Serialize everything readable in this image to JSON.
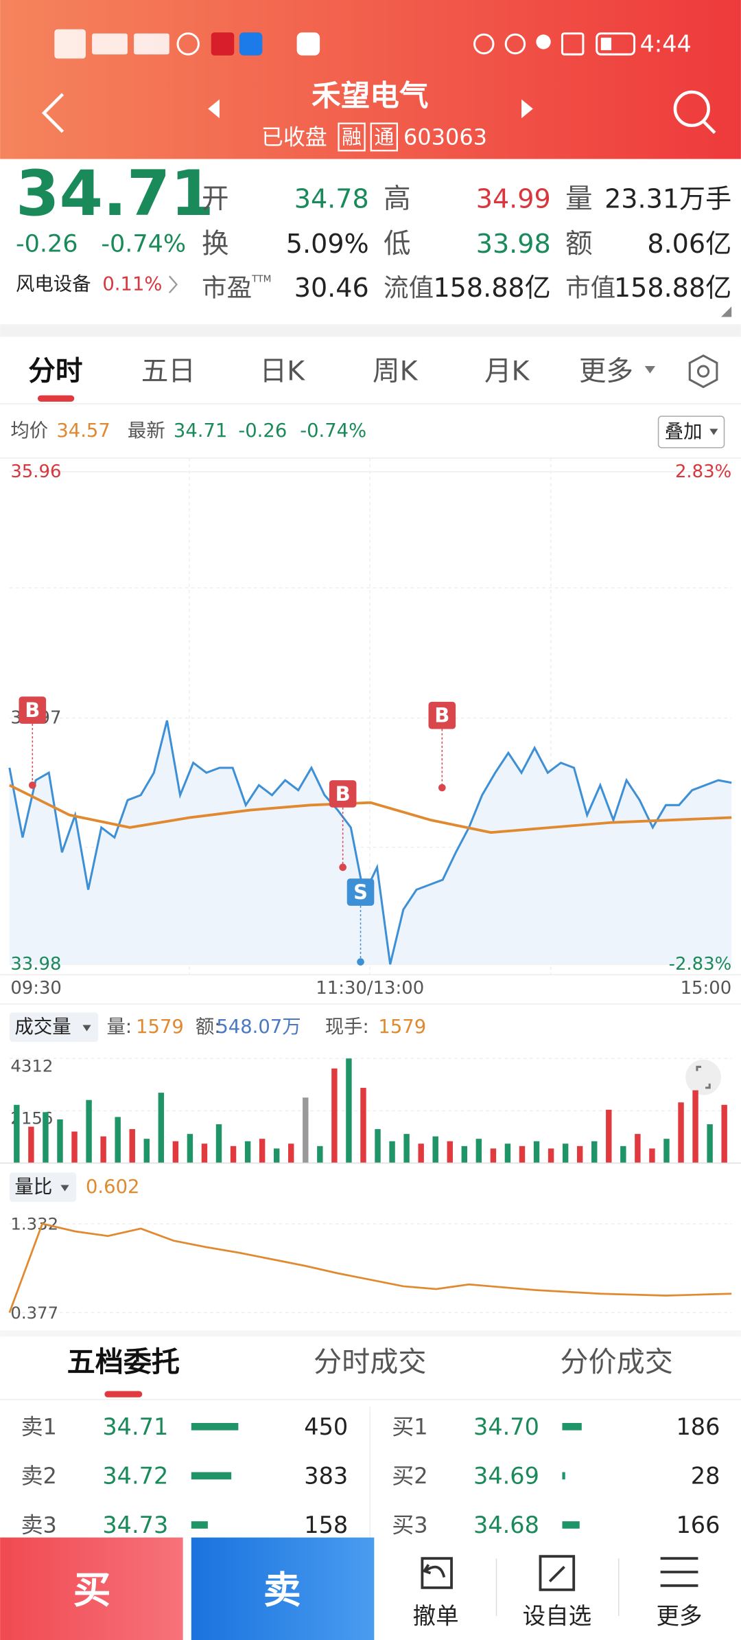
{
  "status_bar": {
    "time": "4:44"
  },
  "header": {
    "title": "禾望电气",
    "status": "已收盘",
    "badges": [
      "融",
      "通"
    ],
    "code": "603063"
  },
  "quote": {
    "price": "34.71",
    "change": "-0.26",
    "change_pct": "-0.74%",
    "fields": [
      {
        "label": "开",
        "value": "34.78"
      },
      {
        "label": "高",
        "value": "34.99"
      },
      {
        "label": "量",
        "value": "23.31万手"
      },
      {
        "label": "换",
        "value": "5.09%"
      },
      {
        "label": "低",
        "value": "33.98"
      },
      {
        "label": "额",
        "value": "8.06亿"
      },
      {
        "label": "市盈",
        "sup": "TTM",
        "value": "30.46"
      },
      {
        "label": "流值",
        "value": "158.88亿"
      },
      {
        "label": "市值",
        "value": "158.88亿"
      }
    ],
    "sector": {
      "name": "风电设备",
      "change": "0.11%"
    }
  },
  "tabs": [
    "分时",
    "五日",
    "日K",
    "周K",
    "月K",
    "更多"
  ],
  "info": {
    "avg_label": "均价",
    "avg": "34.57",
    "latest_label": "最新",
    "latest": "34.71",
    "change": "-0.26",
    "change_pct": "-0.74%",
    "overlay": "叠加"
  },
  "price_chart": {
    "ylim": [
      33.98,
      35.96
    ],
    "yticks": [
      35.96,
      34.97,
      33.98
    ],
    "pct_ticks": [
      "2.83%",
      "-2.83%"
    ],
    "xticks": [
      "09:30",
      "11:30/13:00",
      "15:00"
    ],
    "price": [
      34.77,
      34.49,
      34.72,
      34.75,
      34.43,
      34.58,
      34.28,
      34.53,
      34.49,
      34.64,
      34.66,
      34.75,
      34.96,
      34.66,
      34.79,
      34.75,
      34.77,
      34.77,
      34.62,
      34.7,
      34.66,
      34.72,
      34.68,
      34.77,
      34.66,
      34.6,
      34.53,
      34.26,
      34.37,
      33.98,
      34.2,
      34.28,
      34.3,
      34.32,
      34.43,
      34.53,
      34.66,
      34.75,
      34.83,
      34.75,
      34.85,
      34.75,
      34.79,
      34.77,
      34.58,
      34.7,
      34.56,
      34.72,
      34.64,
      34.53,
      34.62,
      34.62,
      34.68,
      34.7,
      34.72,
      34.71
    ],
    "avg": [
      34.7,
      34.58,
      34.53,
      34.57,
      34.6,
      34.62,
      34.63,
      34.56,
      34.51,
      34.53,
      34.55,
      34.56,
      34.57
    ],
    "trades": [
      {
        "label": "B",
        "price": 34.7
      },
      {
        "label": "B",
        "price": 34.37
      },
      {
        "label": "S",
        "price": 33.99
      },
      {
        "label": "B",
        "price": 34.69
      }
    ]
  },
  "volume": {
    "menu": "成交量",
    "vol_label": "量:",
    "vol": "1579",
    "amt_label": "额:",
    "amt": "548.07万",
    "hand_label": "现手:",
    "hand": "1579",
    "ylim": [
      0,
      4312
    ],
    "yticks": [
      4312,
      2156
    ],
    "values": [
      2400,
      1500,
      2100,
      1800,
      1300,
      2600,
      1100,
      1900,
      1400,
      1000,
      2900,
      900,
      1200,
      800,
      1600,
      700,
      900,
      1000,
      600,
      800,
      2700,
      700,
      3900,
      4312,
      3100,
      1400,
      900,
      1200,
      800,
      1100,
      900,
      700,
      1000,
      600,
      800,
      700,
      900,
      600,
      800,
      700,
      900,
      2200,
      700,
      1200,
      600,
      1000,
      2500,
      3000,
      1600,
      2400
    ],
    "colors": [
      "#1e9467",
      "#e0393e",
      "#1e9467",
      "#1e9467",
      "#e0393e",
      "#1e9467",
      "#e0393e",
      "#1e9467",
      "#e0393e",
      "#1e9467",
      "#1e9467",
      "#e0393e",
      "#1e9467",
      "#e0393e",
      "#1e9467",
      "#e0393e",
      "#1e9467",
      "#e0393e",
      "#1e9467",
      "#e0393e",
      "#999999",
      "#1e9467",
      "#e0393e",
      "#1e9467",
      "#e0393e",
      "#1e9467",
      "#1e9467",
      "#1e9467",
      "#e0393e",
      "#1e9467",
      "#e0393e",
      "#1e9467",
      "#1e9467",
      "#e0393e",
      "#1e9467",
      "#e0393e",
      "#1e9467",
      "#e0393e",
      "#1e9467",
      "#e0393e",
      "#1e9467",
      "#e0393e",
      "#1e9467",
      "#e0393e",
      "#e0393e",
      "#1e9467",
      "#e0393e",
      "#e0393e",
      "#1e9467",
      "#e0393e"
    ]
  },
  "ratio": {
    "menu": "量比",
    "value": "0.602",
    "ylim": [
      0.377,
      1.332
    ],
    "yticks": [
      1.332,
      0.377
    ],
    "values": [
      0.377,
      1.332,
      1.25,
      1.2,
      1.28,
      1.15,
      1.08,
      1.02,
      0.95,
      0.88,
      0.8,
      0.73,
      0.66,
      0.63,
      0.68,
      0.65,
      0.62,
      0.6,
      0.58,
      0.57,
      0.56,
      0.57,
      0.58
    ]
  },
  "book_tabs": [
    "五档委托",
    "分时成交",
    "分价成交"
  ],
  "order_book": {
    "sell": [
      {
        "label": "卖1",
        "price": "34.71",
        "volume": 450
      },
      {
        "label": "卖2",
        "price": "34.72",
        "volume": 383
      },
      {
        "label": "卖3",
        "price": "34.73",
        "volume": 158
      }
    ],
    "buy": [
      {
        "label": "买1",
        "price": "34.70",
        "volume": 186
      },
      {
        "label": "买2",
        "price": "34.69",
        "volume": 28
      },
      {
        "label": "买3",
        "price": "34.68",
        "volume": 166
      }
    ]
  },
  "bottom_bar": {
    "buy": "买",
    "sell": "卖",
    "actions": [
      "撤单",
      "设自选",
      "更多"
    ]
  }
}
